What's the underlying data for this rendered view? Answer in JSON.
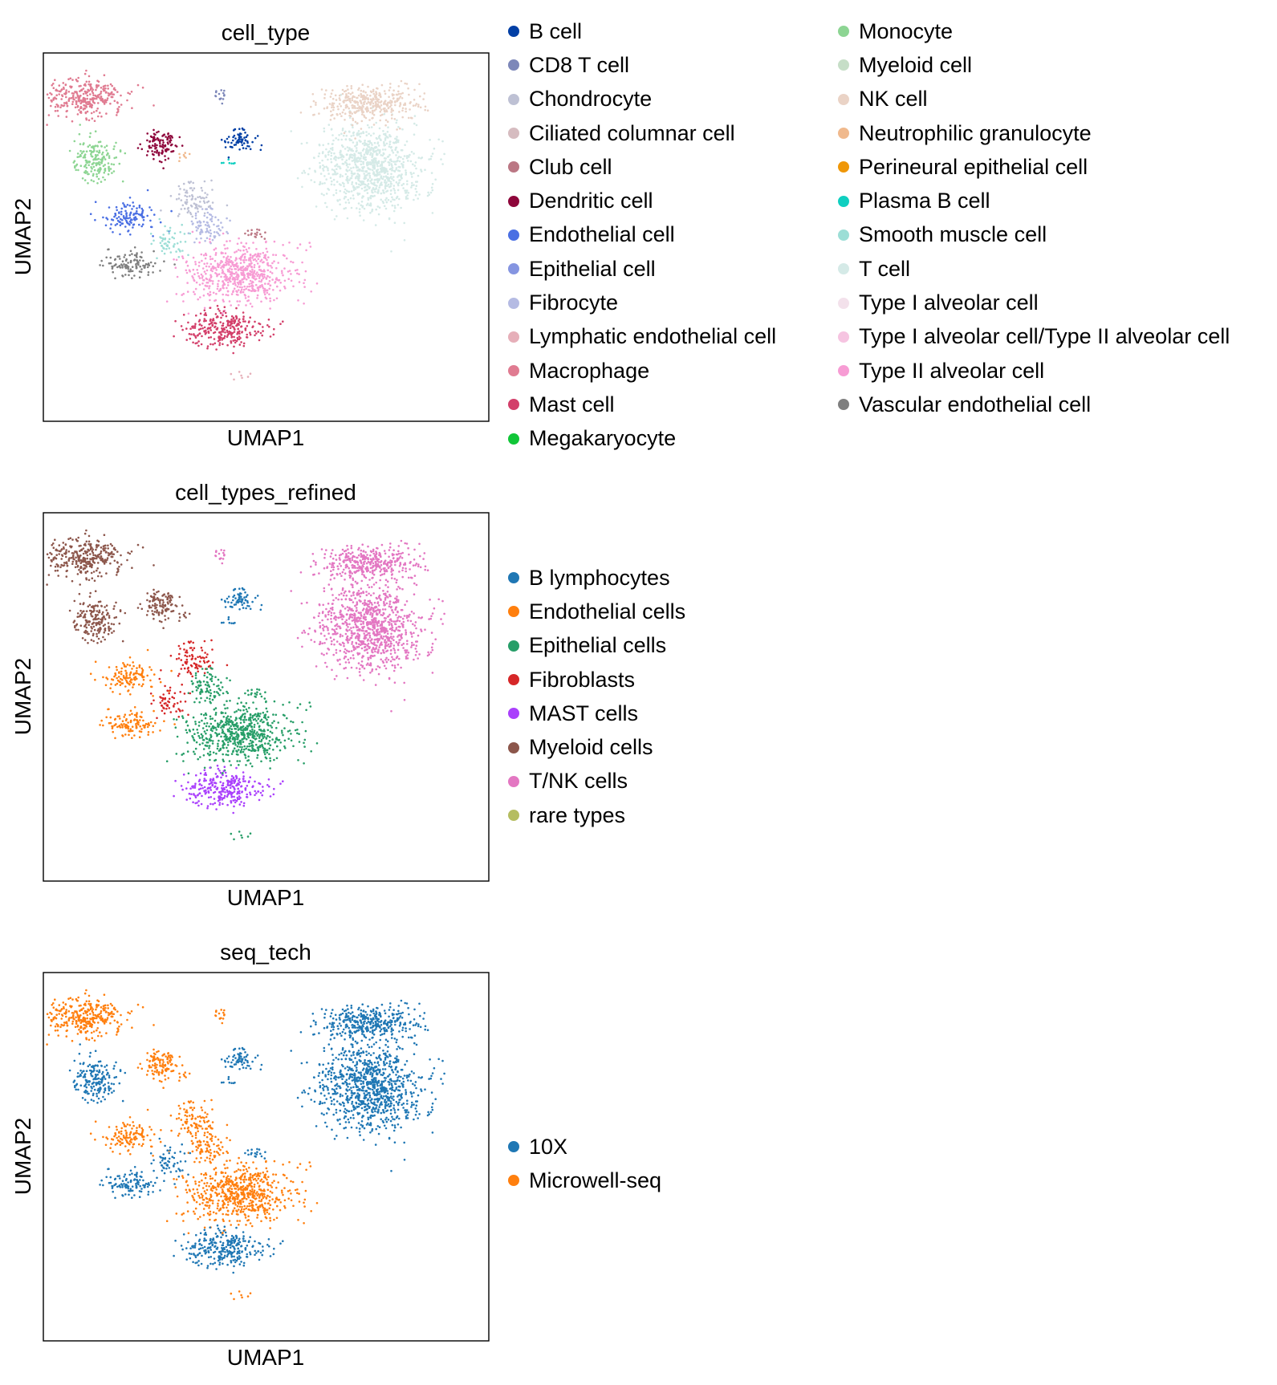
{
  "charts": [
    {
      "type": "scatter",
      "title": "cell_type",
      "xlabel": "UMAP1",
      "ylabel": "UMAP2",
      "legend_placement": "right",
      "legend_columns": [
        [
          {
            "label": "B cell",
            "color": "#023fa5"
          },
          {
            "label": "CD8 T cell",
            "color": "#7d87b9"
          },
          {
            "label": "Chondrocyte",
            "color": "#bec1d4"
          },
          {
            "label": "Ciliated columnar cell",
            "color": "#d6bcc0"
          },
          {
            "label": "Club cell",
            "color": "#bb7784"
          },
          {
            "label": "Dendritic cell",
            "color": "#8e063b"
          },
          {
            "label": "Endothelial cell",
            "color": "#4a6fe3"
          },
          {
            "label": "Epithelial cell",
            "color": "#8595e1"
          },
          {
            "label": "Fibrocyte",
            "color": "#b5bbe3"
          },
          {
            "label": "Lymphatic endothelial cell",
            "color": "#e6afb9"
          },
          {
            "label": "Macrophage",
            "color": "#e07b91"
          },
          {
            "label": "Mast cell",
            "color": "#d33f6a"
          },
          {
            "label": "Megakaryocyte",
            "color": "#11c638"
          }
        ],
        [
          {
            "label": "Monocyte",
            "color": "#8dd593"
          },
          {
            "label": "Myeloid cell",
            "color": "#c6dec7"
          },
          {
            "label": "NK cell",
            "color": "#ead3c6"
          },
          {
            "label": "Neutrophilic granulocyte",
            "color": "#f0b98d"
          },
          {
            "label": "Perineural epithelial cell",
            "color": "#ef9708"
          },
          {
            "label": "Plasma B cell",
            "color": "#0fcfc0"
          },
          {
            "label": "Smooth muscle cell",
            "color": "#9cded6"
          },
          {
            "label": "T cell",
            "color": "#d5eae7"
          },
          {
            "label": "Type I alveolar cell",
            "color": "#f3e1eb"
          },
          {
            "label": "Type I alveolar cell/Type II alveolar cell",
            "color": "#f6c4e1"
          },
          {
            "label": "Type II alveolar cell",
            "color": "#f79cd4"
          },
          {
            "label": "Vascular endothelial cell",
            "color": "#7f7f7f"
          }
        ]
      ]
    },
    {
      "type": "scatter",
      "title": "cell_types_refined",
      "xlabel": "UMAP1",
      "ylabel": "UMAP2",
      "legend_placement": "right",
      "legend_columns": [
        [
          {
            "label": "B lymphocytes",
            "color": "#1f77b4"
          },
          {
            "label": "Endothelial cells",
            "color": "#ff7f0e"
          },
          {
            "label": "Epithelial cells",
            "color": "#279e68"
          },
          {
            "label": "Fibroblasts",
            "color": "#d62728"
          },
          {
            "label": "MAST cells",
            "color": "#aa40fc"
          },
          {
            "label": "Myeloid cells",
            "color": "#8c564b"
          },
          {
            "label": "T/NK cells",
            "color": "#e377c2"
          },
          {
            "label": "rare types",
            "color": "#b5bd61"
          }
        ]
      ]
    },
    {
      "type": "scatter",
      "title": "seq_tech",
      "xlabel": "UMAP1",
      "ylabel": "UMAP2",
      "legend_placement": "right",
      "legend_columns": [
        [
          {
            "label": "10X",
            "color": "#1f77b4"
          },
          {
            "label": "Microwell-seq",
            "color": "#ff7f0e"
          }
        ]
      ]
    }
  ]
}
